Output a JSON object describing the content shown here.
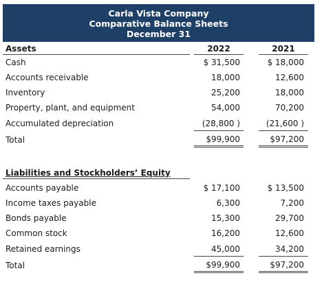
{
  "header": {
    "company": "Carla Vista Company",
    "title": "Comparative Balance Sheets",
    "date": "December 31"
  },
  "assets": {
    "heading": "Assets",
    "col_2022": "2022",
    "col_2021": "2021",
    "rows": [
      {
        "label": "Cash",
        "v2022": "$ 31,500",
        "v2021": "$ 18,000"
      },
      {
        "label": "Accounts receivable",
        "v2022": "18,000",
        "v2021": "12,600"
      },
      {
        "label": "Inventory",
        "v2022": "25,200",
        "v2021": "18,000"
      },
      {
        "label": "Property, plant, and equipment",
        "v2022": "54,000",
        "v2021": "70,200"
      },
      {
        "label": "Accumulated depreciation",
        "v2022": "(28,800 )",
        "v2021": "(21,600 )"
      },
      {
        "label": "Total",
        "v2022": "$99,900",
        "v2021": "$97,200"
      }
    ]
  },
  "liabilities": {
    "heading": "Liabilities and Stockholders’ Equity",
    "rows": [
      {
        "label": "Accounts payable",
        "v2022": "$ 17,100",
        "v2021": "$ 13,500"
      },
      {
        "label": "Income taxes payable",
        "v2022": "6,300",
        "v2021": "7,200"
      },
      {
        "label": "Bonds payable",
        "v2022": "15,300",
        "v2021": "29,700"
      },
      {
        "label": "Common stock",
        "v2022": "16,200",
        "v2021": "12,600"
      },
      {
        "label": "Retained earnings",
        "v2022": "45,000",
        "v2021": "34,200"
      },
      {
        "label": "Total",
        "v2022": "$99,900",
        "v2021": "$97,200"
      }
    ]
  }
}
